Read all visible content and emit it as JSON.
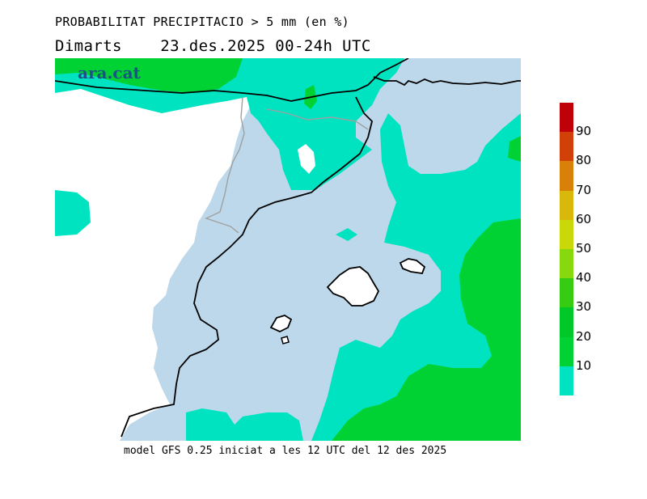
{
  "header": {
    "title_line1": "PROBABILITAT PRECIPITACIO > 5 mm (en %)",
    "title_line2": "Dimarts    23.des.2025 00-24h UTC"
  },
  "brand": {
    "text": "ara.cat",
    "color": "#1f4e8c"
  },
  "footer": {
    "text": "model GFS 0.25 iniciat a les 12 UTC del 12 des 2025"
  },
  "colors": {
    "sea": "#bcd8ea",
    "c10": "#00e3c0",
    "c20": "#00d234",
    "c30": "#00c828",
    "land_border": "#000000",
    "regional_border": "#a0a0a0"
  },
  "legend": {
    "labels": [
      "10",
      "20",
      "30",
      "40",
      "50",
      "60",
      "70",
      "80",
      "90"
    ],
    "colors": [
      "#00e3c0",
      "#00d234",
      "#00c828",
      "#35cc11",
      "#88d80e",
      "#c8d808",
      "#d8b80a",
      "#d88008",
      "#d04008",
      "#c00008"
    ]
  }
}
